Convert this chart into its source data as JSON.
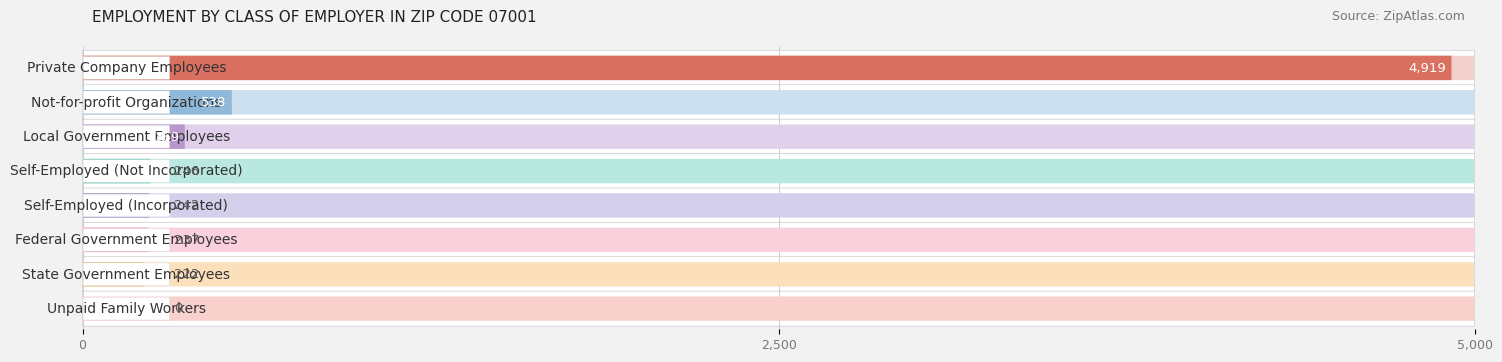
{
  "title": "EMPLOYMENT BY CLASS OF EMPLOYER IN ZIP CODE 07001",
  "source": "Source: ZipAtlas.com",
  "categories": [
    "Private Company Employees",
    "Not-for-profit Organizations",
    "Local Government Employees",
    "Self-Employed (Not Incorporated)",
    "Self-Employed (Incorporated)",
    "Federal Government Employees",
    "State Government Employees",
    "Unpaid Family Workers"
  ],
  "values": [
    4919,
    538,
    369,
    246,
    242,
    237,
    222,
    0
  ],
  "bar_colors": [
    "#d97060",
    "#90b8d8",
    "#b898cc",
    "#50bcac",
    "#9898cc",
    "#f090a8",
    "#f0b878",
    "#e89898"
  ],
  "bar_bg_colors": [
    "#f2d0cc",
    "#cce0f0",
    "#e0d0ec",
    "#b8e8e0",
    "#d4d0ec",
    "#fad0dc",
    "#fce0bc",
    "#f8d0cc"
  ],
  "row_bg_color": "#ffffff",
  "xlim": [
    0,
    5000
  ],
  "xticks": [
    0,
    2500,
    5000
  ],
  "xtick_labels": [
    "0",
    "2,500",
    "5,000"
  ],
  "background_color": "#f2f2f2",
  "title_fontsize": 11,
  "source_fontsize": 9,
  "label_fontsize": 10,
  "value_fontsize": 9.5
}
